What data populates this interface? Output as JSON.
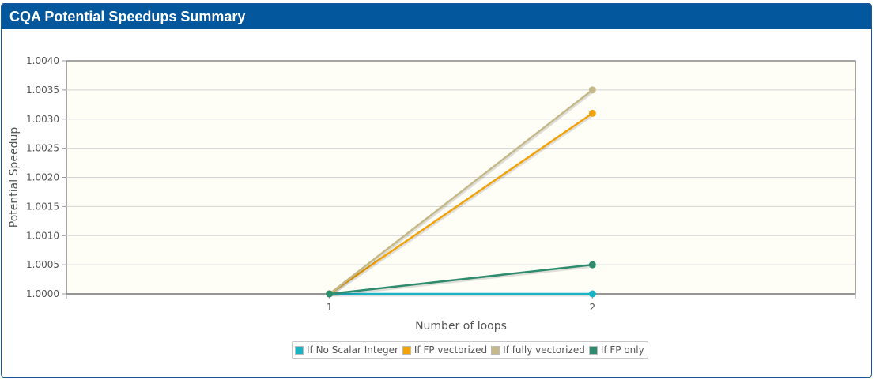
{
  "panel": {
    "title": "CQA Potential Speedups Summary"
  },
  "chart_data": {
    "type": "line",
    "xlabel": "Number of loops",
    "ylabel": "Potential Speedup",
    "x": [
      1,
      2
    ],
    "xlim": [
      0,
      3
    ],
    "ylim": [
      1.0,
      1.004
    ],
    "yticks": [
      "1.0000",
      "1.0005",
      "1.0010",
      "1.0015",
      "1.0020",
      "1.0025",
      "1.0030",
      "1.0035",
      "1.0040"
    ],
    "xticks": [
      "1",
      "2"
    ],
    "grid": true,
    "legend_position": "bottom-center",
    "series": [
      {
        "name": "If No Scalar Integer",
        "color": "#1ab3c3",
        "values": [
          1.0,
          1.0
        ]
      },
      {
        "name": "If FP vectorized",
        "color": "#f0a30a",
        "values": [
          1.0,
          1.0031
        ]
      },
      {
        "name": "If fully vectorized",
        "color": "#c5b98a",
        "values": [
          1.0,
          1.0035
        ]
      },
      {
        "name": "If FP only",
        "color": "#2e8b6e",
        "values": [
          1.0,
          1.0005
        ]
      }
    ]
  }
}
